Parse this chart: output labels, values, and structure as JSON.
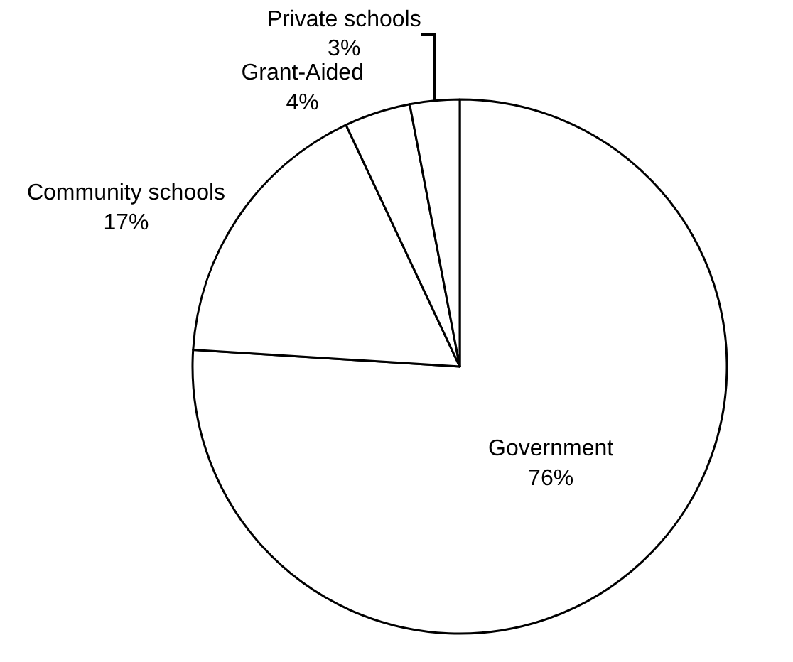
{
  "chart_data": {
    "type": "pie",
    "categories": [
      "Government",
      "Community schools",
      "Grant-Aided",
      "Private schools"
    ],
    "values": [
      76,
      17,
      4,
      3
    ],
    "colors": [
      "#ffffff",
      "#ffffff",
      "#ffffff",
      "#ffffff"
    ],
    "value_labels": [
      "76%",
      "17%",
      "4%",
      "3%"
    ],
    "legend": false
  }
}
